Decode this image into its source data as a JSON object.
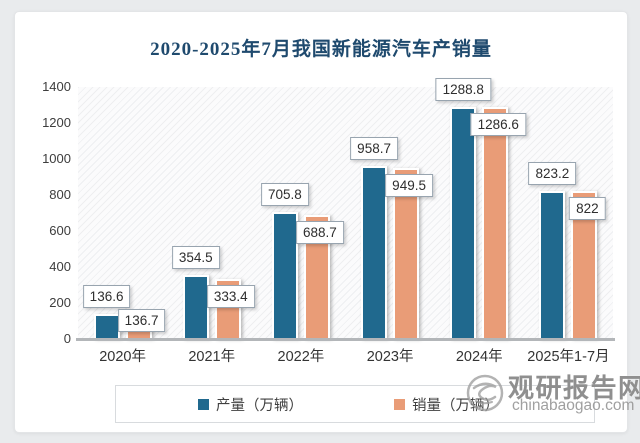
{
  "chart_data": {
    "type": "bar",
    "title": "2020-2025年7月我国新能源汽车产销量",
    "categories": [
      "2020年",
      "2021年",
      "2022年",
      "2023年",
      "2024年",
      "2025年1-7月"
    ],
    "series": [
      {
        "name": "产量（万辆）",
        "color": "#20698E",
        "values": [
          136.6,
          354.5,
          705.8,
          958.7,
          1288.8,
          823.2
        ]
      },
      {
        "name": "销量（万辆）",
        "color": "#E99C77",
        "values": [
          136.7,
          333.4,
          688.7,
          949.5,
          1286.6,
          822
        ]
      }
    ],
    "ylim": [
      0,
      1400
    ],
    "ytick_step": 200,
    "ytick_labels": [
      "0",
      "200",
      "400",
      "600",
      "800",
      "1000",
      "1200",
      "1400"
    ],
    "grid": false,
    "legend_position": "bottom",
    "data_labels": true,
    "plot_background": "diagonal-hatch"
  },
  "colors": {
    "title_text": "#1F4A6E",
    "axis_text": "#3D3D3D",
    "production_bar": "#20698E",
    "sales_bar": "#E99C77",
    "label_box_border": "#98A4AF"
  },
  "watermark": {
    "site_name": "观研报告网",
    "site_url": "chinabaogao.com",
    "logo": "swirl-globe-icon"
  }
}
